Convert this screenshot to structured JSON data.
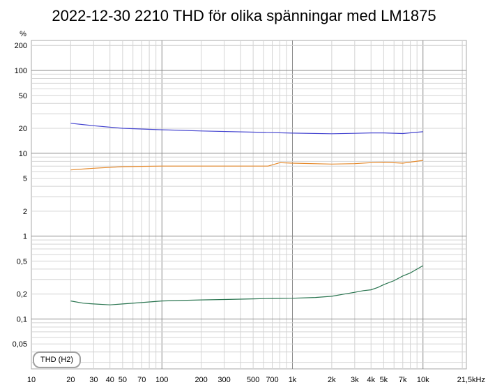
{
  "chart_data": {
    "type": "line",
    "title": "2022-12-30 2210 THD för olika spänningar med LM1875",
    "ylabel": "%",
    "x_unit": "Hz",
    "x_scale": "log",
    "y_scale": "log",
    "xlim": [
      10,
      21500
    ],
    "ylim": [
      0.025,
      230
    ],
    "grid": true,
    "legend": {
      "label": "THD (H2)",
      "placement": "bottom-left"
    },
    "x_ticks": [
      {
        "value": 10,
        "label": "10"
      },
      {
        "value": 20,
        "label": "20"
      },
      {
        "value": 30,
        "label": "30"
      },
      {
        "value": 40,
        "label": "40"
      },
      {
        "value": 50,
        "label": "50"
      },
      {
        "value": 70,
        "label": "70"
      },
      {
        "value": 100,
        "label": "100"
      },
      {
        "value": 200,
        "label": "200"
      },
      {
        "value": 300,
        "label": "300"
      },
      {
        "value": 500,
        "label": "500"
      },
      {
        "value": 700,
        "label": "700"
      },
      {
        "value": 1000,
        "label": "1k"
      },
      {
        "value": 2000,
        "label": "2k"
      },
      {
        "value": 3000,
        "label": "3k"
      },
      {
        "value": 4000,
        "label": "4k"
      },
      {
        "value": 5000,
        "label": "5k"
      },
      {
        "value": 7000,
        "label": "7k"
      },
      {
        "value": 10000,
        "label": "10k"
      },
      {
        "value": 21500,
        "label": "21,5kHz"
      }
    ],
    "y_ticks": [
      {
        "value": 200,
        "label": "200"
      },
      {
        "value": 100,
        "label": "100"
      },
      {
        "value": 50,
        "label": "50"
      },
      {
        "value": 20,
        "label": "20"
      },
      {
        "value": 10,
        "label": "10"
      },
      {
        "value": 5,
        "label": "5"
      },
      {
        "value": 2,
        "label": "2"
      },
      {
        "value": 1,
        "label": "1"
      },
      {
        "value": 0.5,
        "label": "0,5"
      },
      {
        "value": 0.2,
        "label": "0,2"
      },
      {
        "value": 0.1,
        "label": "0,1"
      },
      {
        "value": 0.05,
        "label": "0,05"
      }
    ],
    "series": [
      {
        "color": "#4545d0",
        "points": [
          [
            20,
            23
          ],
          [
            30,
            21.5
          ],
          [
            50,
            20
          ],
          [
            100,
            19.2
          ],
          [
            200,
            18.6
          ],
          [
            500,
            18
          ],
          [
            1000,
            17.5
          ],
          [
            2000,
            17.2
          ],
          [
            3000,
            17.4
          ],
          [
            4000,
            17.6
          ],
          [
            5000,
            17.6
          ],
          [
            7000,
            17.3
          ],
          [
            10000,
            18.2
          ]
        ]
      },
      {
        "color": "#e5892b",
        "points": [
          [
            20,
            6.3
          ],
          [
            30,
            6.6
          ],
          [
            50,
            6.9
          ],
          [
            100,
            7
          ],
          [
            200,
            7
          ],
          [
            400,
            7
          ],
          [
            650,
            7
          ],
          [
            800,
            7.7
          ],
          [
            1000,
            7.6
          ],
          [
            2000,
            7.4
          ],
          [
            3000,
            7.5
          ],
          [
            4000,
            7.7
          ],
          [
            5000,
            7.8
          ],
          [
            7000,
            7.6
          ],
          [
            10000,
            8.2
          ]
        ]
      },
      {
        "color": "#2a7550",
        "points": [
          [
            20,
            0.165
          ],
          [
            25,
            0.155
          ],
          [
            30,
            0.152
          ],
          [
            40,
            0.148
          ],
          [
            50,
            0.152
          ],
          [
            70,
            0.158
          ],
          [
            100,
            0.165
          ],
          [
            200,
            0.17
          ],
          [
            300,
            0.172
          ],
          [
            500,
            0.175
          ],
          [
            700,
            0.177
          ],
          [
            1000,
            0.178
          ],
          [
            1500,
            0.182
          ],
          [
            2000,
            0.188
          ],
          [
            2500,
            0.2
          ],
          [
            3000,
            0.21
          ],
          [
            3500,
            0.22
          ],
          [
            4000,
            0.225
          ],
          [
            4500,
            0.24
          ],
          [
            5000,
            0.26
          ],
          [
            6000,
            0.29
          ],
          [
            7000,
            0.33
          ],
          [
            8000,
            0.36
          ],
          [
            9000,
            0.4
          ],
          [
            10000,
            0.44
          ]
        ]
      }
    ]
  }
}
